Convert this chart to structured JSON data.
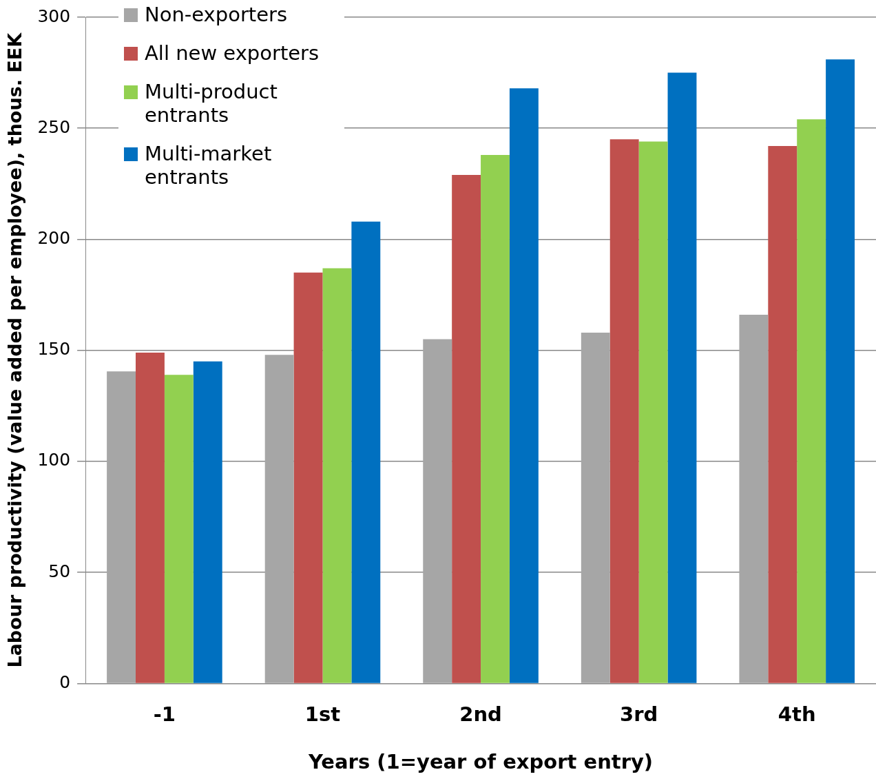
{
  "chart_data": {
    "type": "bar",
    "xlabel": "Years (1=year of export entry)",
    "ylabel": "Labour productivity (value added per employee), thous. EEK",
    "categories": [
      "-1",
      "1st",
      "2nd",
      "3rd",
      "4th"
    ],
    "series": [
      {
        "name": "Non-exporters",
        "color": "#a6a6a6",
        "values": [
          140.5,
          148,
          155,
          158,
          166
        ]
      },
      {
        "name": "All new exporters",
        "color": "#c0504d",
        "values": [
          149,
          185,
          229,
          245,
          242
        ]
      },
      {
        "name": "Multi-product entrants",
        "color": "#92d050",
        "values": [
          139,
          187,
          238,
          244,
          254
        ]
      },
      {
        "name": "Multi-market entrants",
        "color": "#0070c0",
        "values": [
          145,
          208,
          268,
          275,
          281
        ]
      }
    ],
    "ylim": [
      0,
      300
    ],
    "yticks": [
      0,
      50,
      100,
      150,
      200,
      250,
      300
    ],
    "grid": "y",
    "legend": "top left"
  }
}
